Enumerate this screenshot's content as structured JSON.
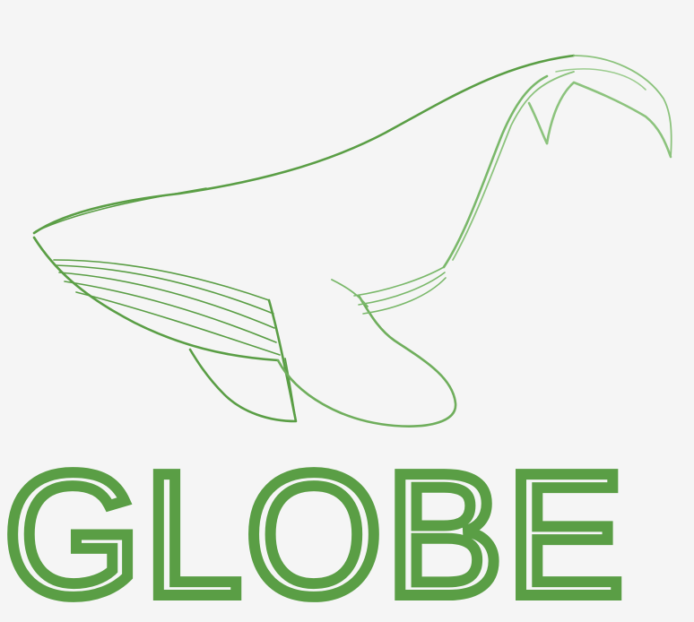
{
  "logo": {
    "wordmark": "GLOBE",
    "icon": "humpback-whale-icon",
    "color": "#5a9e45",
    "background": "#f5f5f5"
  }
}
